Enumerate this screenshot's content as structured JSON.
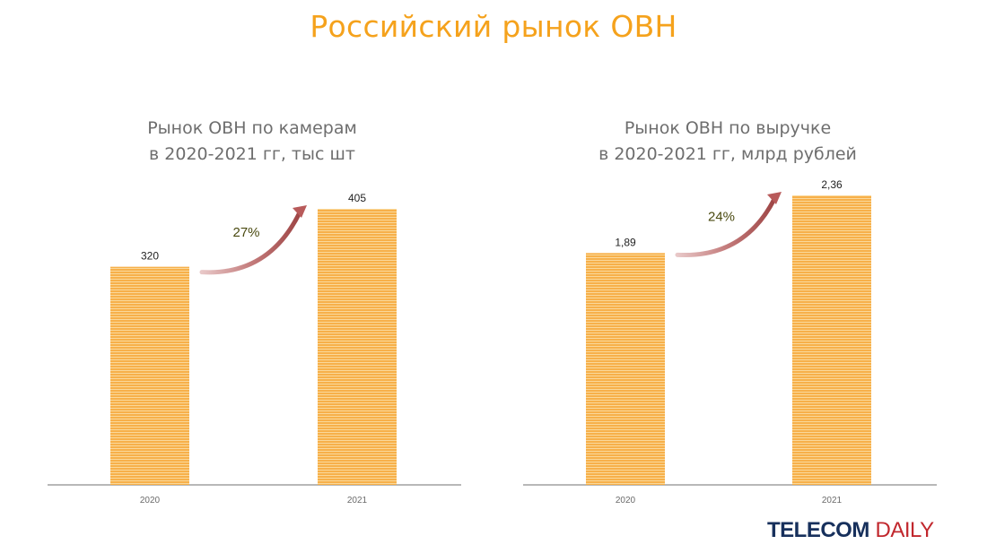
{
  "title": "Российский рынок ОВН",
  "colors": {
    "title": "#f5a21c",
    "bar": "#f7b04a",
    "bar_stripe": "#fad89a",
    "arrow": "#b85a5a",
    "growth_label": "#4a4a10",
    "axis": "#a0a0a0",
    "logo_primary": "#17305c",
    "logo_accent": "#c1272d"
  },
  "logo": {
    "part1": "TELECOM",
    "part2": "DAILY"
  },
  "chart_data": [
    {
      "type": "bar",
      "title_lines": [
        "Рынок ОВН по камерам",
        "в 2020-2021 гг, тыс шт"
      ],
      "categories": [
        "2020",
        "2021"
      ],
      "values": [
        320,
        405
      ],
      "value_labels": [
        "320",
        "405"
      ],
      "growth_label": "27%",
      "grid": false,
      "legend": "none"
    },
    {
      "type": "bar",
      "title_lines": [
        "Рынок ОВН по выручке",
        "в 2020-2021 гг, млрд рублей"
      ],
      "categories": [
        "2020",
        "2021"
      ],
      "values": [
        1.89,
        2.36
      ],
      "value_labels": [
        "1,89",
        "2,36"
      ],
      "growth_label": "24%",
      "grid": false,
      "legend": "none"
    }
  ]
}
